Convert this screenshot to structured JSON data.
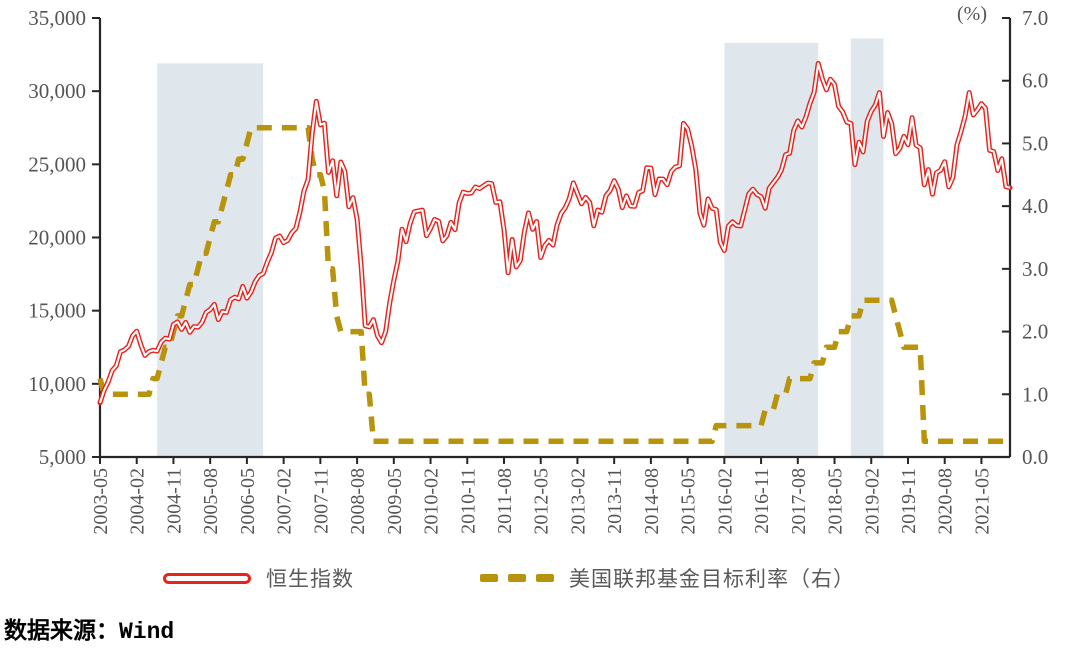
{
  "colors": {
    "hsi_red": "#e8231c",
    "rate_gold": "#b8930c",
    "band_blue": "#dfe7ed",
    "axis_black": "#262626",
    "label_gray": "#555555"
  },
  "legend": {
    "items": [
      {
        "label": "恒生指数",
        "marker": "red-double-line"
      },
      {
        "label": "美国联邦基金目标利率（右）",
        "marker": "gold-dashes"
      }
    ]
  },
  "source_note": "数据来源：Wind",
  "chart_data": {
    "type": "line",
    "title": "",
    "right_axis_unit_label": "(%)",
    "grid": false,
    "legend_position": "bottom",
    "band_color": "#dfe7ed",
    "x_axis": {
      "start": "2003-05",
      "end": "2021-12",
      "frequency": "monthly",
      "tick_interval_months": 9,
      "tick_labels": [
        "2003-05",
        "2004-02",
        "2004-11",
        "2005-08",
        "2006-05",
        "2007-02",
        "2007-11",
        "2008-08",
        "2009-05",
        "2010-02",
        "2010-11",
        "2011-08",
        "2012-05",
        "2013-02",
        "2013-11",
        "2014-08",
        "2015-05",
        "2016-02",
        "2016-11",
        "2017-08",
        "2018-05",
        "2019-02",
        "2019-11",
        "2020-08",
        "2021-05"
      ]
    },
    "left_axis": {
      "min": 5000,
      "max": 35000,
      "step": 5000,
      "tick_labels": [
        "5,000",
        "10,000",
        "15,000",
        "20,000",
        "25,000",
        "30,000",
        "35,000"
      ]
    },
    "right_axis": {
      "min": 0,
      "max": 7,
      "step": 1,
      "tick_labels": [
        "0.0",
        "1.0",
        "2.0",
        "3.0",
        "4.0",
        "5.0",
        "6.0",
        "7.0"
      ]
    },
    "highlight_bands": [
      {
        "start": "2004-07",
        "end": "2006-09",
        "start_month_index": 14,
        "end_month_index": 40,
        "top_value_left_axis": 31900
      },
      {
        "start": "2016-02",
        "end": "2018-01",
        "start_month_index": 153,
        "end_month_index": 176,
        "top_value_left_axis": 33300
      },
      {
        "start": "2018-09",
        "end": "2019-05",
        "start_month_index": 184,
        "end_month_index": 192,
        "top_value_left_axis": 33600
      }
    ],
    "series": [
      {
        "name": "恒生指数",
        "axis": "left",
        "style": "double-line",
        "color": "#e8231c",
        "start": "2003-05",
        "frequency": "monthly",
        "values": [
          8700,
          9560,
          10130,
          10910,
          11230,
          12190,
          12320,
          12580,
          13290,
          13600,
          12680,
          11940,
          12200,
          12290,
          12240,
          12850,
          13120,
          13060,
          14060,
          14230,
          13720,
          14200,
          13520,
          13910,
          13870,
          14200,
          14880,
          15070,
          15430,
          14390,
          14940,
          14880,
          15750,
          15920,
          15810,
          16660,
          15860,
          16270,
          16970,
          17390,
          17540,
          18320,
          18960,
          19960,
          20110,
          19650,
          19800,
          20320,
          20630,
          21770,
          23180,
          23980,
          27140,
          29300,
          27700,
          27810,
          24450,
          25250,
          22850,
          25160,
          24530,
          22100,
          22730,
          21260,
          18020,
          13970,
          13890,
          14390,
          13280,
          12810,
          13580,
          15520,
          17070,
          18380,
          20570,
          19720,
          20960,
          21750,
          21820,
          21870,
          20120,
          20610,
          21240,
          21110,
          19770,
          20130,
          21030,
          20540,
          22360,
          23100,
          23010,
          23040,
          23450,
          23340,
          23530,
          23720,
          23680,
          22400,
          22440,
          20540,
          17590,
          19860,
          17990,
          18430,
          20390,
          21680,
          20560,
          21090,
          18630,
          19440,
          19800,
          19480,
          20840,
          21640,
          22030,
          22660,
          23730,
          23020,
          22300,
          22740,
          22390,
          20800,
          21880,
          21730,
          22860,
          23210,
          23880,
          23310,
          22040,
          22840,
          22150,
          22130,
          23080,
          23190,
          24760,
          24740,
          22930,
          24000,
          23990,
          23610,
          24510,
          24820,
          24900,
          27800,
          27420,
          26250,
          24640,
          21670,
          20850,
          22640,
          22000,
          21910,
          19680,
          19110,
          20780,
          21070,
          20820,
          20790,
          21890,
          22980,
          23300,
          22940,
          22790,
          22000,
          23360,
          23740,
          24110,
          24620,
          25660,
          25760,
          27320,
          27970,
          27550,
          28250,
          29180,
          29920,
          31900,
          30850,
          30090,
          30810,
          30470,
          28960,
          28580,
          27890,
          27790,
          24980,
          26510,
          25850,
          27940,
          28630,
          29050,
          29900,
          26900,
          28540,
          27780,
          25730,
          26090,
          26910,
          26350,
          28190,
          26310,
          26130,
          23600,
          24640,
          22960,
          24430,
          24600,
          25180,
          23460,
          24110,
          26340,
          27230,
          28280,
          29900,
          28380,
          28720,
          29150,
          28830,
          25960,
          25880,
          24580,
          25380,
          23480,
          23400
        ]
      },
      {
        "name": "美国联邦基金目标利率（右）",
        "axis": "right",
        "style": "dashed",
        "color": "#b8930c",
        "start": "2003-05",
        "frequency": "monthly",
        "values": [
          1.25,
          1.0,
          1.0,
          1.0,
          1.0,
          1.0,
          1.0,
          1.0,
          1.0,
          1.0,
          1.0,
          1.0,
          1.0,
          1.25,
          1.25,
          1.5,
          1.75,
          1.75,
          2.0,
          2.25,
          2.25,
          2.5,
          2.75,
          2.75,
          3.0,
          3.25,
          3.25,
          3.5,
          3.75,
          3.75,
          4.0,
          4.25,
          4.5,
          4.5,
          4.75,
          4.75,
          5.0,
          5.25,
          5.25,
          5.25,
          5.25,
          5.25,
          5.25,
          5.25,
          5.25,
          5.25,
          5.25,
          5.25,
          5.25,
          5.25,
          5.25,
          5.25,
          4.75,
          4.5,
          4.5,
          4.25,
          3.0,
          3.0,
          2.25,
          2.0,
          2.0,
          2.0,
          2.0,
          2.0,
          2.0,
          1.0,
          1.0,
          0.25,
          0.25,
          0.25,
          0.25,
          0.25,
          0.25,
          0.25,
          0.25,
          0.25,
          0.25,
          0.25,
          0.25,
          0.25,
          0.25,
          0.25,
          0.25,
          0.25,
          0.25,
          0.25,
          0.25,
          0.25,
          0.25,
          0.25,
          0.25,
          0.25,
          0.25,
          0.25,
          0.25,
          0.25,
          0.25,
          0.25,
          0.25,
          0.25,
          0.25,
          0.25,
          0.25,
          0.25,
          0.25,
          0.25,
          0.25,
          0.25,
          0.25,
          0.25,
          0.25,
          0.25,
          0.25,
          0.25,
          0.25,
          0.25,
          0.25,
          0.25,
          0.25,
          0.25,
          0.25,
          0.25,
          0.25,
          0.25,
          0.25,
          0.25,
          0.25,
          0.25,
          0.25,
          0.25,
          0.25,
          0.25,
          0.25,
          0.25,
          0.25,
          0.25,
          0.25,
          0.25,
          0.25,
          0.25,
          0.25,
          0.25,
          0.25,
          0.25,
          0.25,
          0.25,
          0.25,
          0.25,
          0.25,
          0.25,
          0.25,
          0.5,
          0.5,
          0.5,
          0.5,
          0.5,
          0.5,
          0.5,
          0.5,
          0.5,
          0.5,
          0.5,
          0.5,
          0.75,
          0.75,
          0.75,
          1.0,
          1.0,
          1.0,
          1.25,
          1.25,
          1.25,
          1.25,
          1.25,
          1.25,
          1.5,
          1.5,
          1.5,
          1.75,
          1.75,
          1.75,
          2.0,
          2.0,
          2.0,
          2.25,
          2.25,
          2.25,
          2.5,
          2.5,
          2.5,
          2.5,
          2.5,
          2.5,
          2.5,
          2.5,
          2.25,
          2.0,
          1.75,
          1.75,
          1.75,
          1.75,
          1.75,
          0.25,
          0.25,
          0.25,
          0.25,
          0.25,
          0.25,
          0.25,
          0.25,
          0.25,
          0.25,
          0.25,
          0.25,
          0.25,
          0.25,
          0.25,
          0.25,
          0.25,
          0.25,
          0.25,
          0.25,
          0.25,
          0.25
        ]
      }
    ]
  }
}
